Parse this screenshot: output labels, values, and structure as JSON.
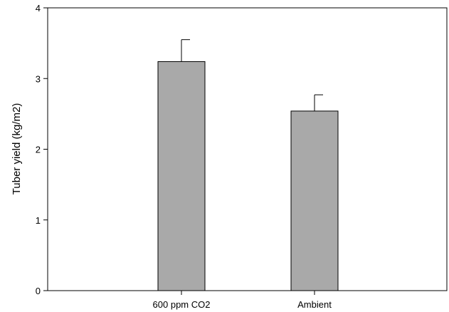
{
  "chart_data": {
    "type": "bar",
    "categories": [
      "600 ppm CO2",
      "Ambient"
    ],
    "values": [
      3.24,
      2.54
    ],
    "error_bars": [
      0.31,
      0.23
    ],
    "ylabel": "Tuber yield (kg/m2)",
    "xlabel": "",
    "ylim": [
      0,
      4
    ],
    "yticks": [
      "0",
      "1",
      "2",
      "3",
      "4"
    ],
    "bar_color": "#a9a9a9",
    "grid": false
  }
}
